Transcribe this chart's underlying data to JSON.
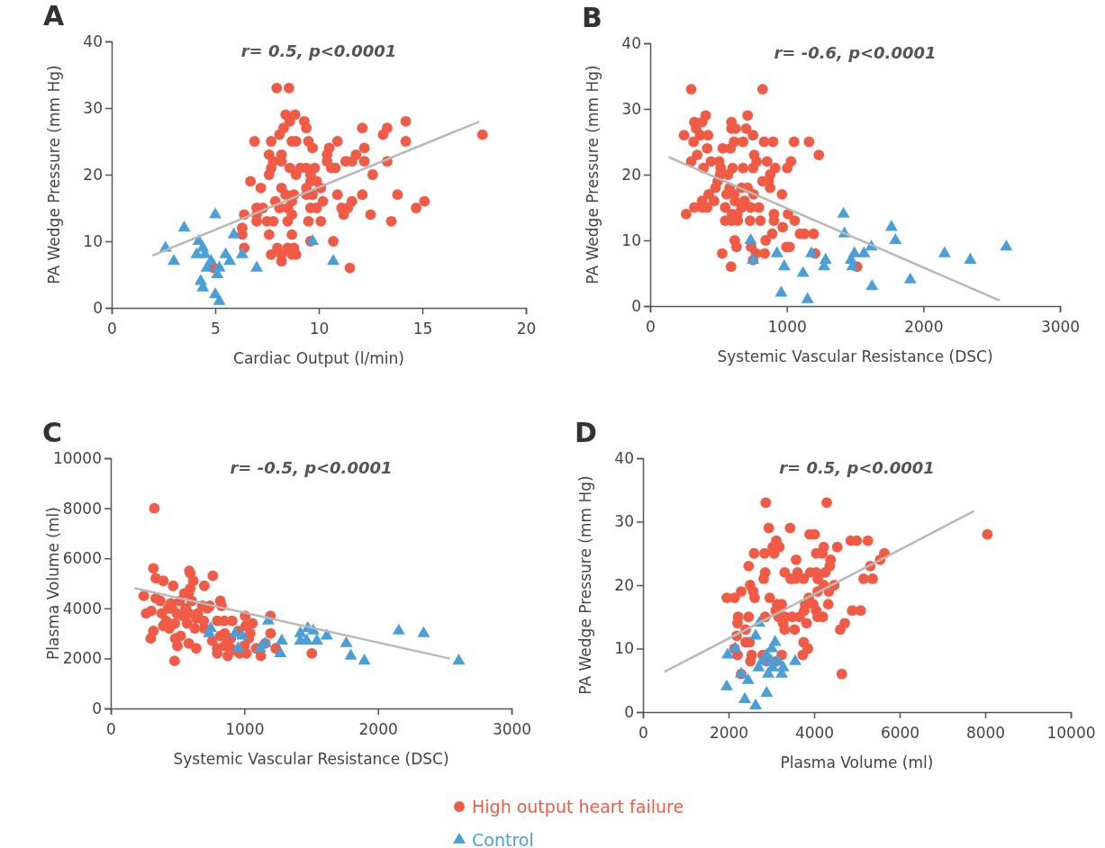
{
  "chart_data": [
    {
      "type": "scatter",
      "title": "A",
      "subtitle": "r= 0.5, p<0.0001",
      "xlabel": "Cardiac Output (l/min)",
      "ylabel": "PA Wedge Pressure (mm Hg)",
      "xlim": [
        0,
        20
      ],
      "xticks": [
        0,
        5,
        10,
        15,
        20
      ],
      "ylim": [
        0,
        40
      ],
      "yticks": [
        0,
        10,
        20,
        30,
        40
      ],
      "legend": "bottom",
      "series": [
        {
          "name": "High output heart failure",
          "color": "#f15a45",
          "marker": "circle",
          "x": [
            7.97,
            8.56,
            8.4,
            8.85,
            8.6,
            9.3,
            9.4,
            8.3,
            8.1,
            6.9,
            7.7,
            8.7,
            8.9,
            9.5,
            9.7,
            10.5,
            10.9,
            12.1,
            13.1,
            13.3,
            14.2,
            14.2,
            17.9,
            7.6,
            8.2,
            10.4,
            12.2,
            11.8,
            7.8,
            8.2,
            10.4,
            11.3,
            11.6,
            12.2,
            13.3,
            7.7,
            8.6,
            9.1,
            9.4,
            9.8,
            10.6,
            10.8,
            7.6,
            8.9,
            9.6,
            12.6,
            6.7,
            9.6,
            9.9,
            7.2,
            8.2,
            9.4,
            10.1,
            8.4,
            8.8,
            9.4,
            9.7,
            10.9,
            12.1,
            13.8,
            7.9,
            8.7,
            10.2,
            11.6,
            15.1,
            7.0,
            7.3,
            8.1,
            8.5,
            9.6,
            9.9,
            11.1,
            11.4,
            14.7,
            6.4,
            7.0,
            8.7,
            11.2,
            12.5,
            7.0,
            7.5,
            7.8,
            8.5,
            9.5,
            10.1,
            13.5,
            6.3,
            6.3,
            7.6,
            8.7,
            9.6,
            10.7,
            6.4,
            8.0,
            8.5,
            8.8,
            7.7,
            8.2,
            8.7,
            8.9,
            8.2,
            11.5,
            4.9
          ],
          "values": [
            33,
            33,
            29,
            29,
            28,
            28,
            27,
            27,
            26,
            25,
            25,
            25,
            25,
            25,
            24,
            24,
            25,
            27,
            26,
            27,
            28,
            25,
            26,
            23,
            23,
            23,
            24,
            23,
            22,
            22,
            22,
            22,
            22,
            22,
            22,
            21,
            21,
            21,
            21,
            21,
            21,
            21,
            20,
            20,
            20,
            20,
            19,
            19,
            19,
            18,
            18,
            18,
            18,
            17,
            17,
            17,
            17,
            17,
            17,
            17,
            16,
            16,
            16,
            16,
            16,
            15,
            15,
            15,
            15,
            15,
            15,
            15,
            15,
            15,
            14,
            14,
            14,
            14,
            14,
            13,
            13,
            13,
            13,
            13,
            13,
            13,
            12,
            11,
            11,
            11,
            10,
            10,
            9,
            9,
            9,
            9,
            8,
            8,
            8,
            8,
            7,
            6,
            6
          ]
        },
        {
          "name": "Control",
          "color": "#4a9fd9",
          "marker": "triangle",
          "x": [
            2.6,
            3.0,
            3.5,
            4.2,
            4.4,
            4.1,
            4.5,
            5.0,
            4.8,
            4.6,
            5.2,
            5.1,
            4.3,
            4.4,
            5.0,
            5.2,
            5.9,
            5.5,
            5.7,
            6.3,
            7.0,
            9.7,
            10.7
          ],
          "values": [
            9,
            7,
            12,
            10,
            9,
            8,
            8,
            14,
            7,
            6,
            6,
            5,
            4,
            3,
            2,
            1,
            11,
            8,
            7,
            8,
            6,
            10,
            7
          ]
        },
        {
          "type": "line",
          "color": "#b8b8b8",
          "marker": "none",
          "x": [
            2,
            17.7
          ],
          "values": [
            7.9,
            27.9
          ]
        }
      ]
    },
    {
      "type": "scatter",
      "title": "B",
      "subtitle": "r= -0.6, p<0.0001",
      "xlabel": "Systemic Vascular Resistance (DSC)",
      "ylabel": "PA Wedge Pressure (mm Hg)",
      "xlim": [
        0,
        3000
      ],
      "xticks": [
        0,
        1000,
        2000,
        3000
      ],
      "ylim": [
        0,
        40
      ],
      "yticks": [
        0,
        10,
        20,
        30,
        40
      ],
      "series": [
        {
          "color": "#f15a45",
          "marker": "circle",
          "x": [
            300,
            823,
            406,
            713,
            323,
            380,
            595,
            336,
            595,
            625,
            702,
            248,
            366,
            423,
            753,
            318,
            614,
            680,
            834,
            900,
            1053,
            1163,
            417,
            531,
            588,
            344,
            761,
            1235,
            300,
            445,
            505,
            779,
            856,
            1031,
            390,
            516,
            603,
            680,
            753,
            915,
            1003,
            511,
            570,
            878,
            494,
            823,
            867,
            478,
            581,
            669,
            713,
            878,
            428,
            559,
            614,
            757,
            965,
            380,
            467,
            621,
            691,
            323,
            384,
            417,
            549,
            669,
            735,
            796,
            263,
            599,
            638,
            906,
            1009,
            549,
            595,
            641,
            731,
            807,
            906,
            1058,
            970,
            893,
            1097,
            1130,
            1196,
            619,
            845,
            632,
            739,
            998,
            1020,
            527,
            774,
            838,
            1207,
            753,
            592,
            1514
          ],
          "values": [
            33,
            33,
            29,
            29,
            28,
            28,
            28,
            27,
            27,
            27,
            27,
            26,
            26,
            26,
            26,
            25,
            25,
            25,
            25,
            25,
            25,
            25,
            24,
            24,
            24,
            23,
            23,
            23,
            22,
            22,
            22,
            22,
            22,
            22,
            21,
            21,
            21,
            21,
            21,
            21,
            21,
            20,
            20,
            20,
            19,
            19,
            19,
            18,
            18,
            18,
            18,
            18,
            17,
            17,
            17,
            17,
            17,
            16,
            16,
            16,
            16,
            15,
            15,
            15,
            15,
            15,
            15,
            15,
            14,
            14,
            14,
            14,
            14,
            13,
            13,
            13,
            13,
            13,
            13,
            13,
            12,
            11,
            11,
            11,
            11,
            10,
            10,
            9,
            9,
            9,
            9,
            8,
            8,
            8,
            8,
            7,
            6,
            6
          ]
        },
        {
          "color": "#4a9fd9",
          "marker": "triangle",
          "x": [
            1415,
            1422,
            1766,
            1795,
            735,
            1619,
            2607,
            2155,
            1495,
            1565,
            1180,
            928,
            2343,
            1470,
            1284,
            753,
            981,
            1273,
            1481,
            1119,
            1904,
            1624,
            959,
            1152
          ],
          "values": [
            14,
            11,
            12,
            10,
            10,
            9,
            9,
            8,
            8,
            8,
            8,
            8,
            7,
            7,
            7,
            7,
            6,
            6,
            6,
            5,
            4,
            3,
            2,
            1
          ]
        },
        {
          "type": "line",
          "color": "#b8b8b8",
          "marker": "none",
          "x": [
            143,
            2552
          ],
          "values": [
            22.6,
            0.9
          ]
        }
      ]
    },
    {
      "type": "scatter",
      "title": "C",
      "subtitle": "r= -0.5, p<0.0001",
      "xlabel": "Systemic Vascular Resistance (DSC)",
      "ylabel": "Plasma Volume (ml)",
      "xlim": [
        0,
        3000
      ],
      "xticks": [
        0,
        1000,
        2000,
        3000
      ],
      "ylim": [
        0,
        10000
      ],
      "yticks": [
        0,
        2000,
        4000,
        6000,
        8000,
        10000
      ],
      "series": [
        {
          "color": "#f15a45",
          "marker": "circle",
          "x": [
            326,
            319,
            337,
            393,
            588,
            595,
            618,
            764,
            700,
            467,
            595,
            247,
            337,
            371,
            449,
            517,
            550,
            584,
            606,
            685,
            741,
            820,
            829,
            265,
            303,
            382,
            460,
            494,
            539,
            584,
            651,
            696,
            723,
            1006,
            1195,
            415,
            797,
            849,
            909,
            319,
            393,
            438,
            572,
            629,
            820,
            853,
            954,
            1010,
            1060,
            299,
            483,
            523,
            584,
            499,
            898,
            1044,
            1197,
            1033,
            640,
            797,
            853,
            898,
            999,
            1089,
            1157,
            1235,
            797,
            876,
            966,
            1015,
            1123,
            1505,
            478,
            430,
            560,
            640,
            480,
            700,
            760,
            870,
            940
          ],
          "values": [
            8000,
            5600,
            5200,
            5100,
            5500,
            5400,
            5100,
            5300,
            4900,
            4900,
            4800,
            4500,
            4400,
            4300,
            4200,
            4300,
            4600,
            4600,
            4300,
            4100,
            4100,
            4300,
            4100,
            3800,
            3900,
            3800,
            4000,
            3800,
            3700,
            3800,
            3800,
            3500,
            4000,
            3700,
            3700,
            3500,
            3500,
            3500,
            3500,
            3100,
            3300,
            3200,
            3400,
            3200,
            2900,
            3000,
            3100,
            3300,
            3400,
            2800,
            2800,
            2900,
            2600,
            2500,
            2800,
            3000,
            3000,
            2800,
            2400,
            2400,
            2500,
            2400,
            2500,
            2400,
            2600,
            2400,
            2200,
            2100,
            2200,
            2200,
            2100,
            2200,
            1900,
            4000,
            4000,
            3600,
            3400,
            3200,
            2700,
            2600,
            2300
          ]
        },
        {
          "color": "#4a9fd9",
          "marker": "triangle",
          "x": [
            748,
            737,
            932,
            984,
            954,
            1179,
            1157,
            1118,
            1269,
            1280,
            1419,
            1475,
            1516,
            1419,
            1466,
            1543,
            1617,
            1763,
            1797,
            1898,
            2156,
            2342,
            2605
          ],
          "values": [
            3200,
            3000,
            3000,
            2900,
            2400,
            3500,
            2600,
            2400,
            2200,
            2700,
            3000,
            3200,
            3100,
            2700,
            2700,
            2700,
            2900,
            2600,
            2100,
            1900,
            3100,
            3000,
            1900
          ]
        },
        {
          "type": "line",
          "color": "#b8b8b8",
          "marker": "none",
          "x": [
            184,
            2533
          ],
          "values": [
            4800,
            2000
          ]
        }
      ]
    },
    {
      "type": "scatter",
      "title": "D",
      "subtitle": "r= 0.5, p<0.0001",
      "xlabel": "Plasma Volume (ml)",
      "ylabel": "PA Wedge Pressure (mm Hg)",
      "xlim": [
        0,
        10000
      ],
      "xticks": [
        0,
        2000,
        4000,
        6000,
        8000,
        10000
      ],
      "ylim": [
        0,
        40
      ],
      "yticks": [
        0,
        10,
        20,
        30,
        40
      ],
      "series": [
        {
          "color": "#f15a45",
          "marker": "circle",
          "x": [
            2870,
            4295,
            2941,
            3439,
            8050,
            3895,
            4014,
            3116,
            4856,
            4997,
            5257,
            3032,
            3186,
            3067,
            2842,
            2597,
            4225,
            4541,
            4049,
            4190,
            5642,
            3579,
            4386,
            5544,
            2470,
            4365,
            5313,
            2856,
            3312,
            3614,
            3909,
            4049,
            4260,
            2821,
            3453,
            3558,
            3755,
            4084,
            5158,
            5369,
            2505,
            4225,
            4471,
            2295,
            2575,
            4084,
            4344,
            1958,
            2140,
            2610,
            2961,
            3874,
            3137,
            3242,
            3790,
            3979,
            4330,
            3102,
            3769,
            4049,
            4891,
            5088,
            2225,
            2470,
            2856,
            3172,
            3312,
            3488,
            3663,
            4084,
            4204,
            2210,
            3277,
            3825,
            4716,
            2400,
            3312,
            3544,
            4611,
            2190,
            2400,
            2491,
            3755,
            2140,
            3853,
            2210,
            2541,
            2800,
            3242,
            3734,
            2512,
            3116,
            2891,
            2295,
            4646
          ],
          "values": [
            33,
            33,
            29,
            29,
            28,
            28,
            28,
            27,
            27,
            27,
            27,
            26,
            26,
            25,
            25,
            25,
            26,
            26,
            25,
            25,
            25,
            24,
            24,
            24,
            23,
            23,
            23,
            22,
            22,
            22,
            22,
            22,
            22,
            21,
            21,
            21,
            21,
            21,
            21,
            21,
            20,
            20,
            20,
            19,
            19,
            19,
            19,
            18,
            18,
            18,
            18,
            18,
            17,
            17,
            17,
            17,
            17,
            16,
            16,
            16,
            16,
            16,
            15,
            15,
            15,
            15,
            15,
            15,
            15,
            15,
            15,
            14,
            14,
            14,
            14,
            13,
            13,
            13,
            13,
            12,
            11,
            11,
            11,
            10,
            10,
            9,
            9,
            9,
            9,
            9,
            8,
            8,
            8,
            6,
            6
          ]
        },
        {
          "color": "#4a9fd9",
          "marker": "triangle",
          "x": [
            1979,
            2154,
            2632,
            2716,
            3088,
            3011,
            2891,
            2786,
            2702,
            2997,
            3158,
            3032,
            3277,
            3558,
            2926,
            3242,
            2295,
            2456,
            1958,
            2891,
            2379,
            2632
          ],
          "values": [
            9,
            10,
            12,
            14,
            11,
            10,
            9,
            8,
            7,
            8,
            8,
            7,
            7,
            8,
            6,
            6,
            6,
            5,
            4,
            3,
            2,
            1
          ]
        },
        {
          "type": "line",
          "color": "#b8b8b8",
          "marker": "none",
          "x": [
            519,
            7720
          ],
          "values": [
            6.4,
            31.6
          ]
        }
      ]
    }
  ]
}
